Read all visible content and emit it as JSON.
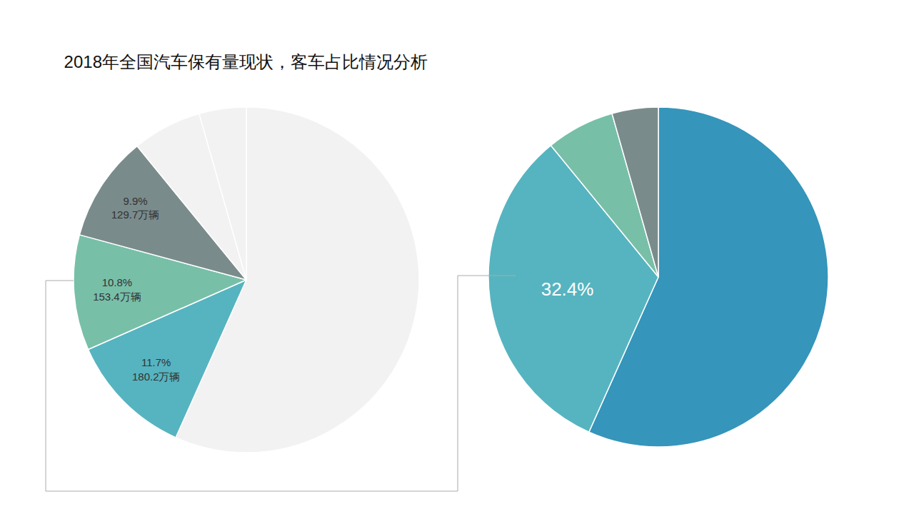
{
  "chart_data": [
    {
      "type": "pie",
      "title": "2018年全国汽车保有量现状，客车占比情况分析",
      "values": [
        56.7,
        11.7,
        10.8,
        9.9,
        6.5,
        4.4
      ],
      "value_labels": [
        null,
        "11.7%",
        "10.8%",
        "9.9%",
        null,
        null
      ],
      "vehicles": [
        null,
        180.2,
        153.4,
        129.7,
        null,
        null
      ],
      "vehicle_labels": [
        null,
        "180.2万辆",
        "153.4万辆",
        "129.7万辆",
        null,
        null
      ],
      "colors": [
        "#f2f2f2",
        "#56b4c0",
        "#78bfa8",
        "#7a8b8c",
        "#f2f2f2",
        "#f2f2f2"
      ],
      "data_labels": true
    },
    {
      "type": "pie",
      "values": [
        56.7,
        32.4,
        6.5,
        4.4
      ],
      "value_labels": [
        null,
        "32.4%",
        null,
        null
      ],
      "colors": [
        "#3595bb",
        "#56b4c0",
        "#78bfa8",
        "#7a8b8c"
      ],
      "data_labels": true
    }
  ]
}
